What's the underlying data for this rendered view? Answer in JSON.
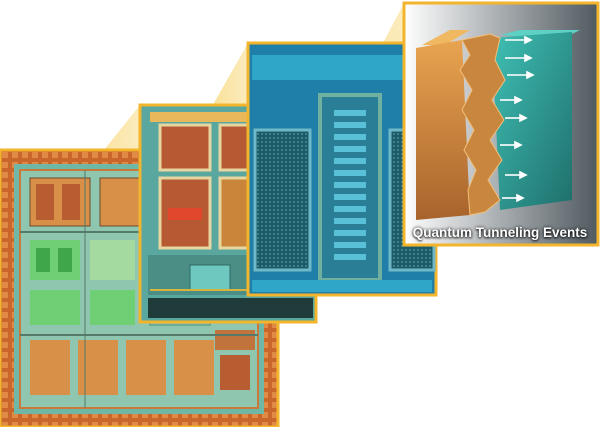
{
  "figure": {
    "subject": "Magnified views of a microchip die",
    "caption": "Quantum Tunneling Events",
    "colors": {
      "frame_gold": "#f2b52c",
      "die_orange": "#d9772f",
      "die_teal": "#3fb7b4",
      "metal_green": "#7fd38a",
      "cube_orange": "#e39b45",
      "cube_teal": "#34b3ab"
    }
  }
}
